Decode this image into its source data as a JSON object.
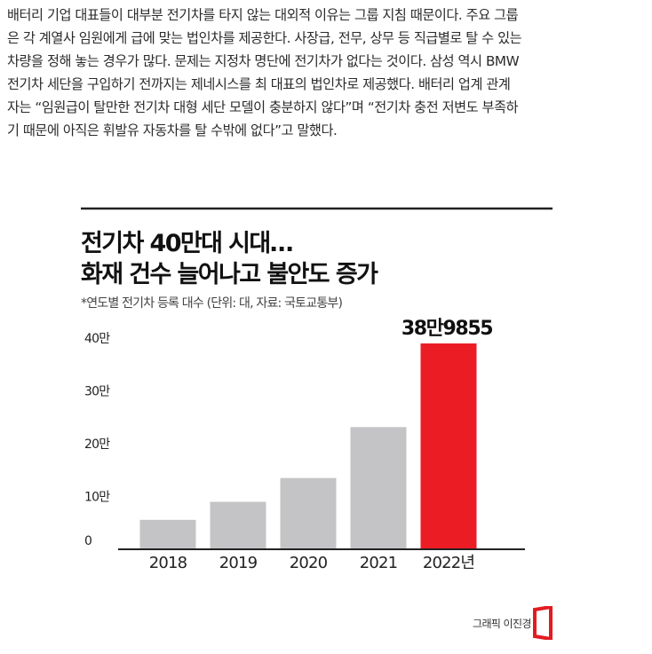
{
  "article": {
    "lines": [
      "배터리 기업 대표들이 대부분 전기차를 타지 않는 대외적 이유는 그룹 지침 때문이다. 주요 그룹",
      "은 각 계열사 임원에게 급에 맞는 법인차를 제공한다. 사장급, 전무, 상무 등 직급별로 탈 수 있는",
      "차량을 정해 놓는 경우가 많다. 문제는 지정차 명단에 전기차가 없다는 것이다. 삼성 역시 BMW",
      "전기차 세단을 구입하기 전까지는 제네시스를 최 대표의 법인차로 제공했다. 배터리 업계 관계",
      "자는 “임원급이 탈만한 전기차 대형 세단 모델이 충분하지 않다”며 “전기차 충전 저변도 부족하",
      "기 때문에 아직은 휘발유 자동차를 탈 수밖에 없다”고 말했다."
    ]
  },
  "chart_data": {
    "type": "bar",
    "title": [
      "전기차 40만대 시대…",
      "화재 건수 늘어나고 불안도 증가"
    ],
    "subtitle": "*연도별 전기차 등록 대수 (단위: 대, 자료: 국토교통부)",
    "categories": [
      "2018",
      "2019",
      "2020",
      "2021",
      "2022년"
    ],
    "values": [
      55756,
      89918,
      134962,
      231443,
      389855
    ],
    "value_label": "38만9855",
    "yticks": [
      "0",
      "10만",
      "20만",
      "30만",
      "40만"
    ],
    "ytick_values": [
      0,
      100000,
      200000,
      300000,
      400000
    ],
    "ylim": [
      0,
      400000
    ],
    "grid": false,
    "colors": {
      "bar": "#c4c4c6",
      "highlight": "#ec1c24",
      "axis": "#222222"
    },
    "highlight_index": 4
  },
  "credit": {
    "text": "그래픽 이진경",
    "logo": "publisher-logo-icon"
  }
}
